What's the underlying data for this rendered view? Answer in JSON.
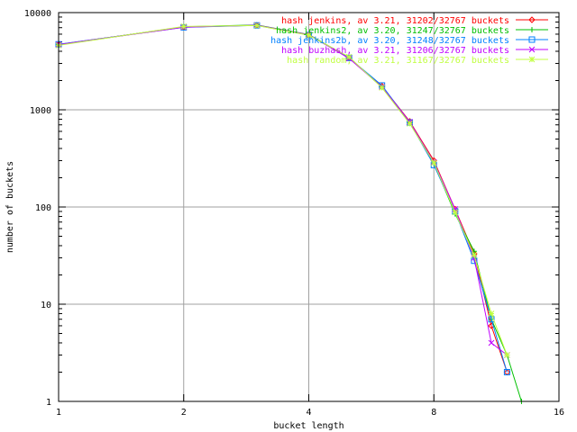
{
  "chart_data": {
    "type": "line",
    "title": "",
    "xlabel": "bucket length",
    "ylabel": "number of buckets",
    "x_scale": "log2",
    "y_scale": "log10",
    "xlim": [
      1,
      16
    ],
    "ylim": [
      1,
      10000
    ],
    "x_ticks": [
      1,
      2,
      4,
      8,
      16
    ],
    "x_tick_labels": [
      "1",
      "2",
      "4",
      "8",
      "16"
    ],
    "y_ticks": [
      1,
      10,
      100,
      1000,
      10000
    ],
    "y_tick_labels": [
      "1",
      "10",
      "100",
      "1000",
      "10000"
    ],
    "grid": true,
    "legend_position": "top-right",
    "series": [
      {
        "name": "hash jenkins, av 3.21, 31202/32767 buckets",
        "color": "#ff0000",
        "marker": "diamond",
        "x": [
          1,
          2,
          3,
          4,
          5,
          6,
          7,
          8,
          9,
          10,
          11,
          12
        ],
        "y": [
          4700,
          7100,
          7400,
          5900,
          3400,
          1750,
          760,
          300,
          95,
          33,
          6,
          2
        ]
      },
      {
        "name": "hash jenkins2, av 3.20, 31247/32767 buckets",
        "color": "#00c000",
        "marker": "plus",
        "x": [
          1,
          2,
          3,
          4,
          5,
          6,
          7,
          8,
          9,
          10,
          11,
          12,
          13
        ],
        "y": [
          4650,
          7150,
          7450,
          5950,
          3450,
          1700,
          730,
          280,
          85,
          35,
          7,
          3,
          1
        ]
      },
      {
        "name": "hash jenkins2b, av 3.20, 31248/32767 buckets",
        "color": "#0080ff",
        "marker": "square",
        "x": [
          1,
          2,
          3,
          4,
          5,
          6,
          7,
          8,
          9,
          10,
          11,
          12
        ],
        "y": [
          4720,
          7050,
          7380,
          5880,
          3420,
          1780,
          740,
          270,
          90,
          28,
          7,
          2
        ]
      },
      {
        "name": "hash buzhash, av 3.21, 31206/32767 buckets",
        "color": "#c000ff",
        "marker": "cross",
        "x": [
          1,
          2,
          3,
          4,
          5,
          6,
          7,
          8,
          9,
          10,
          11,
          12
        ],
        "y": [
          4680,
          7080,
          7420,
          5920,
          3380,
          1720,
          750,
          290,
          95,
          30,
          4,
          3
        ]
      },
      {
        "name": "hash random, av 3.21, 31167/32767 buckets",
        "color": "#c0ff40",
        "marker": "star",
        "x": [
          1,
          2,
          3,
          4,
          5,
          6,
          7,
          8,
          9,
          10,
          11,
          12
        ],
        "y": [
          4600,
          7200,
          7350,
          5850,
          3500,
          1690,
          720,
          285,
          88,
          32,
          8,
          3
        ]
      }
    ]
  }
}
